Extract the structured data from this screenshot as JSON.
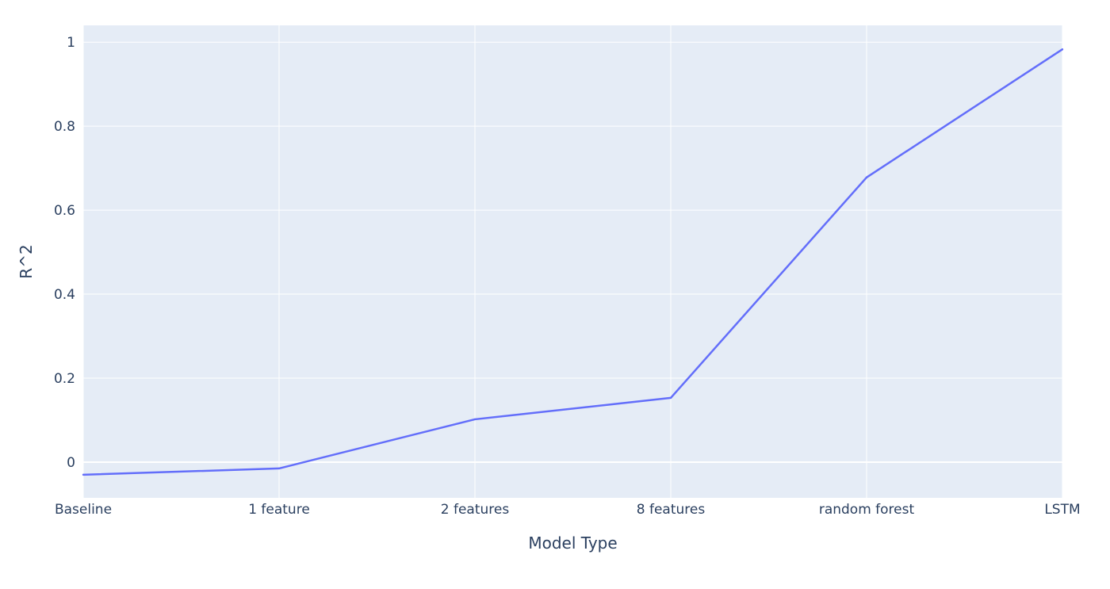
{
  "chart_data": {
    "type": "line",
    "title": "",
    "xlabel": "Model Type",
    "ylabel": "R^2",
    "categories": [
      "Baseline",
      "1 feature",
      "2 features",
      "8 features",
      "random forest",
      "LSTM"
    ],
    "series": [
      {
        "values": [
          -0.03,
          -0.015,
          0.102,
          0.153,
          0.678,
          0.983
        ]
      }
    ],
    "ylim": [
      -0.085,
      1.04
    ],
    "yticks": [
      0,
      0.2,
      0.4,
      0.6,
      0.8,
      1
    ],
    "ytick_labels": [
      "0",
      "0.2",
      "0.4",
      "0.6",
      "0.8",
      "1"
    ],
    "grid": true,
    "legend": "none",
    "colors": {
      "plot_background": "#e5ecf6",
      "grid": "#ffffff",
      "line": "#636efa",
      "text": "#2a3f5f"
    }
  }
}
